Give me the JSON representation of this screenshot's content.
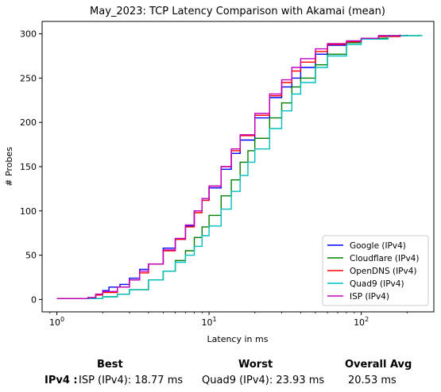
{
  "chart_data": {
    "type": "line",
    "title": "May_2023: TCP Latency Comparison with Akamai (mean)",
    "xlabel": "Latency in ms",
    "ylabel": "# Probes",
    "xscale": "log",
    "xlim": [
      0.8,
      300
    ],
    "ylim": [
      -14,
      314
    ],
    "xticks": [
      1,
      10,
      100
    ],
    "xtick_labels": [
      "10^0",
      "10^1",
      "10^2"
    ],
    "yticks": [
      0,
      50,
      100,
      150,
      200,
      250,
      300
    ],
    "grid": false,
    "legend_position": "lower-right",
    "series": [
      {
        "name": "Google (IPv4)",
        "color": "#0000ff",
        "points": [
          [
            1.0,
            1
          ],
          [
            1.6,
            2
          ],
          [
            1.8,
            6
          ],
          [
            2.0,
            10
          ],
          [
            2.2,
            14
          ],
          [
            2.6,
            17
          ],
          [
            3.0,
            24
          ],
          [
            3.5,
            34
          ],
          [
            4.0,
            40
          ],
          [
            5.0,
            58
          ],
          [
            6.0,
            68
          ],
          [
            7.0,
            83
          ],
          [
            8.0,
            100
          ],
          [
            9.0,
            112
          ],
          [
            10.0,
            126
          ],
          [
            12.0,
            147
          ],
          [
            14.0,
            165
          ],
          [
            16.0,
            180
          ],
          [
            20.0,
            205
          ],
          [
            25.0,
            228
          ],
          [
            30.0,
            240
          ],
          [
            35.0,
            250
          ],
          [
            40.0,
            262
          ],
          [
            50.0,
            277
          ],
          [
            60.0,
            287
          ],
          [
            80.0,
            291
          ],
          [
            100.0,
            294
          ],
          [
            130.0,
            298
          ],
          [
            200.0,
            299
          ]
        ]
      },
      {
        "name": "Cloudflare (IPv4)",
        "color": "#008000",
        "points": [
          [
            1.5,
            1
          ],
          [
            2.0,
            3
          ],
          [
            2.5,
            6
          ],
          [
            3.0,
            11
          ],
          [
            4.0,
            22
          ],
          [
            5.0,
            32
          ],
          [
            6.0,
            44
          ],
          [
            7.0,
            55
          ],
          [
            8.0,
            70
          ],
          [
            9.0,
            82
          ],
          [
            10.0,
            95
          ],
          [
            12.0,
            117
          ],
          [
            14.0,
            135
          ],
          [
            16.0,
            155
          ],
          [
            18.0,
            168
          ],
          [
            20.0,
            182
          ],
          [
            25.0,
            205
          ],
          [
            30.0,
            222
          ],
          [
            35.0,
            240
          ],
          [
            40.0,
            250
          ],
          [
            50.0,
            265
          ],
          [
            60.0,
            277
          ],
          [
            80.0,
            290
          ],
          [
            100.0,
            295
          ],
          [
            150.0,
            298
          ],
          [
            240.0,
            299
          ]
        ]
      },
      {
        "name": "OpenDNS (IPv4)",
        "color": "#ff0000",
        "points": [
          [
            1.0,
            1
          ],
          [
            1.6,
            2
          ],
          [
            1.8,
            5
          ],
          [
            2.0,
            8
          ],
          [
            2.5,
            14
          ],
          [
            3.0,
            22
          ],
          [
            3.5,
            30
          ],
          [
            4.0,
            40
          ],
          [
            5.0,
            55
          ],
          [
            6.0,
            68
          ],
          [
            7.0,
            82
          ],
          [
            8.0,
            98
          ],
          [
            9.0,
            112
          ],
          [
            10.0,
            128
          ],
          [
            12.0,
            150
          ],
          [
            14.0,
            168
          ],
          [
            16.0,
            185
          ],
          [
            20.0,
            208
          ],
          [
            25.0,
            230
          ],
          [
            30.0,
            245
          ],
          [
            35.0,
            258
          ],
          [
            40.0,
            268
          ],
          [
            50.0,
            280
          ],
          [
            60.0,
            288
          ],
          [
            80.0,
            291
          ],
          [
            100.0,
            294
          ],
          [
            130.0,
            297
          ],
          [
            180.0,
            299
          ]
        ]
      },
      {
        "name": "Quad9 (IPv4)",
        "color": "#00bfbf",
        "points": [
          [
            1.5,
            1
          ],
          [
            2.0,
            3
          ],
          [
            2.5,
            6
          ],
          [
            3.0,
            11
          ],
          [
            4.0,
            22
          ],
          [
            5.0,
            32
          ],
          [
            6.0,
            42
          ],
          [
            7.0,
            50
          ],
          [
            8.0,
            60
          ],
          [
            9.0,
            72
          ],
          [
            10.0,
            83
          ],
          [
            12.0,
            102
          ],
          [
            14.0,
            122
          ],
          [
            16.0,
            140
          ],
          [
            18.0,
            155
          ],
          [
            20.0,
            170
          ],
          [
            25.0,
            193
          ],
          [
            30.0,
            213
          ],
          [
            35.0,
            232
          ],
          [
            40.0,
            245
          ],
          [
            50.0,
            262
          ],
          [
            60.0,
            275
          ],
          [
            80.0,
            288
          ],
          [
            100.0,
            294
          ],
          [
            150.0,
            298
          ],
          [
            250.0,
            299
          ]
        ]
      },
      {
        "name": "ISP (IPv4)",
        "color": "#bf00bf",
        "points": [
          [
            1.0,
            1
          ],
          [
            1.6,
            2
          ],
          [
            1.8,
            6
          ],
          [
            2.0,
            9
          ],
          [
            2.5,
            14
          ],
          [
            3.0,
            22
          ],
          [
            3.5,
            32
          ],
          [
            4.0,
            40
          ],
          [
            5.0,
            56
          ],
          [
            6.0,
            69
          ],
          [
            7.0,
            84
          ],
          [
            8.0,
            100
          ],
          [
            9.0,
            114
          ],
          [
            10.0,
            128
          ],
          [
            12.0,
            150
          ],
          [
            14.0,
            170
          ],
          [
            16.0,
            186
          ],
          [
            20.0,
            210
          ],
          [
            25.0,
            232
          ],
          [
            30.0,
            248
          ],
          [
            35.0,
            262
          ],
          [
            40.0,
            272
          ],
          [
            50.0,
            283
          ],
          [
            60.0,
            289
          ],
          [
            80.0,
            292
          ],
          [
            100.0,
            295
          ],
          [
            130.0,
            298
          ],
          [
            180.0,
            299
          ]
        ]
      }
    ]
  },
  "summary": {
    "best_header": "Best",
    "worst_header": "Worst",
    "avg_header": "Overall Avg",
    "row_label": "IPv4 :",
    "best_value": "ISP (IPv4): 18.77 ms",
    "worst_value": "Quad9 (IPv4): 23.93 ms",
    "avg_value": "20.53 ms"
  }
}
